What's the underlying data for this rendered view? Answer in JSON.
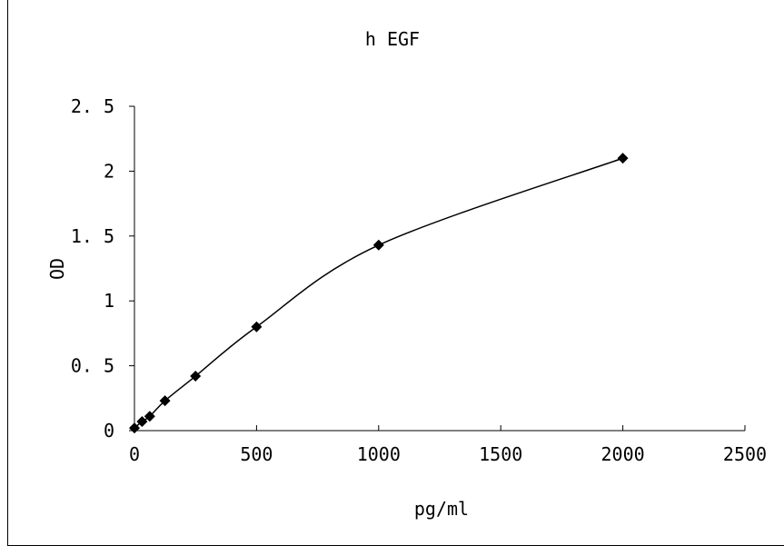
{
  "chart_data": {
    "type": "scatter",
    "title": "h EGF",
    "xlabel": "pg/ml",
    "ylabel": "OD",
    "xlim": [
      0,
      2500
    ],
    "ylim": [
      0,
      2.5
    ],
    "x_ticks": [
      "0",
      "500",
      "1000",
      "1500",
      "2000",
      "2500"
    ],
    "y_ticks": [
      "0",
      "0. 5",
      "1",
      "1. 5",
      "2",
      "2. 5"
    ],
    "grid": false,
    "legend": "none",
    "series": [
      {
        "x": [
          0,
          31.25,
          62.5,
          125,
          250,
          500,
          1000,
          2000
        ],
        "y": [
          0.02,
          0.07,
          0.11,
          0.23,
          0.42,
          0.8,
          1.43,
          2.1
        ],
        "color": "#000000",
        "marker": "diamond",
        "line": "smooth"
      }
    ]
  }
}
